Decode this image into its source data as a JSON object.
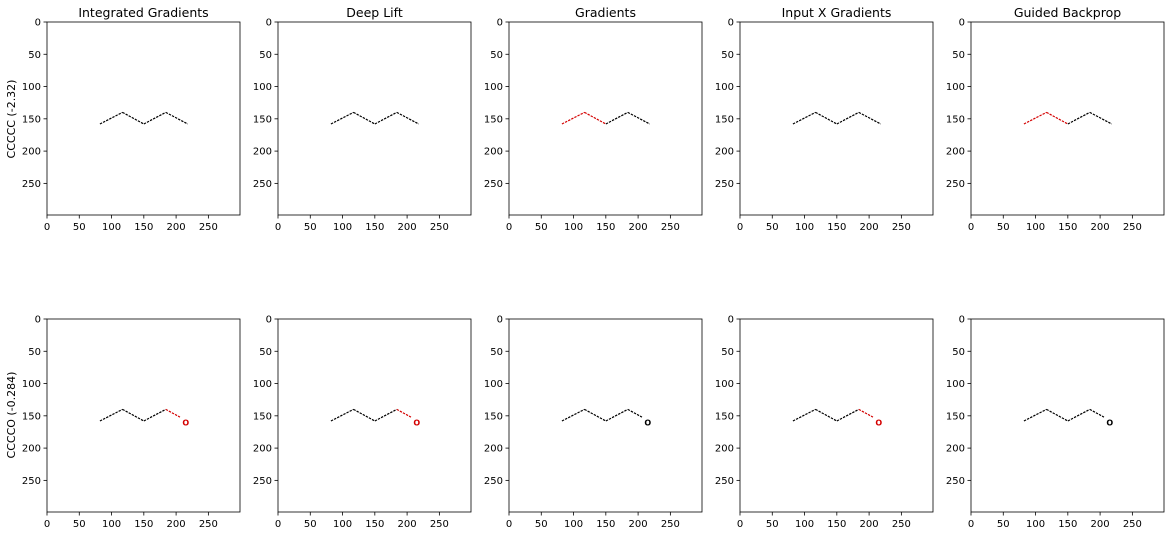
{
  "figure": {
    "row_labels": [
      "CCCCC    (-2.32)",
      "CCCCO    (-0.284)"
    ]
  },
  "chart_data": [
    {
      "type": "heatmap",
      "title": "Integrated Gradients",
      "row": 0,
      "xlim": [
        0,
        299
      ],
      "ylim": [
        299,
        0
      ],
      "xticks": [
        "0",
        "50",
        "100",
        "150",
        "200",
        "250"
      ],
      "yticks": [
        "0",
        "50",
        "100",
        "150",
        "200",
        "250"
      ],
      "segments": [
        {
          "from": [
            82,
            158
          ],
          "to": [
            117,
            140
          ],
          "color": "#000000"
        },
        {
          "from": [
            117,
            140
          ],
          "to": [
            150,
            158
          ],
          "color": "#000000"
        },
        {
          "from": [
            150,
            158
          ],
          "to": [
            184,
            140
          ],
          "color": "#000000"
        },
        {
          "from": [
            184,
            140
          ],
          "to": [
            218,
            158
          ],
          "color": "#000000"
        }
      ]
    },
    {
      "type": "heatmap",
      "title": "Deep Lift",
      "row": 0,
      "xlim": [
        0,
        299
      ],
      "ylim": [
        299,
        0
      ],
      "xticks": [
        "0",
        "50",
        "100",
        "150",
        "200",
        "250"
      ],
      "yticks": [
        "0",
        "50",
        "100",
        "150",
        "200",
        "250"
      ],
      "segments": [
        {
          "from": [
            82,
            158
          ],
          "to": [
            117,
            140
          ],
          "color": "#000000"
        },
        {
          "from": [
            117,
            140
          ],
          "to": [
            150,
            158
          ],
          "color": "#000000"
        },
        {
          "from": [
            150,
            158
          ],
          "to": [
            184,
            140
          ],
          "color": "#000000"
        },
        {
          "from": [
            184,
            140
          ],
          "to": [
            218,
            158
          ],
          "color": "#000000"
        }
      ]
    },
    {
      "type": "heatmap",
      "title": "Gradients",
      "row": 0,
      "xlim": [
        0,
        299
      ],
      "ylim": [
        299,
        0
      ],
      "xticks": [
        "0",
        "50",
        "100",
        "150",
        "200",
        "250"
      ],
      "yticks": [
        "0",
        "50",
        "100",
        "150",
        "200",
        "250"
      ],
      "segments": [
        {
          "from": [
            82,
            158
          ],
          "to": [
            117,
            140
          ],
          "color": "#d40000"
        },
        {
          "from": [
            117,
            140
          ],
          "to": [
            150,
            158
          ],
          "color": "#d40000"
        },
        {
          "from": [
            150,
            158
          ],
          "to": [
            184,
            140
          ],
          "color": "#000000"
        },
        {
          "from": [
            184,
            140
          ],
          "to": [
            218,
            158
          ],
          "color": "#000000"
        }
      ]
    },
    {
      "type": "heatmap",
      "title": "Input X Gradients",
      "row": 0,
      "xlim": [
        0,
        299
      ],
      "ylim": [
        299,
        0
      ],
      "xticks": [
        "0",
        "50",
        "100",
        "150",
        "200",
        "250"
      ],
      "yticks": [
        "0",
        "50",
        "100",
        "150",
        "200",
        "250"
      ],
      "segments": [
        {
          "from": [
            82,
            158
          ],
          "to": [
            117,
            140
          ],
          "color": "#000000"
        },
        {
          "from": [
            117,
            140
          ],
          "to": [
            150,
            158
          ],
          "color": "#000000"
        },
        {
          "from": [
            150,
            158
          ],
          "to": [
            184,
            140
          ],
          "color": "#000000"
        },
        {
          "from": [
            184,
            140
          ],
          "to": [
            218,
            158
          ],
          "color": "#000000"
        }
      ]
    },
    {
      "type": "heatmap",
      "title": "Guided Backprop",
      "row": 0,
      "xlim": [
        0,
        299
      ],
      "ylim": [
        299,
        0
      ],
      "xticks": [
        "0",
        "50",
        "100",
        "150",
        "200",
        "250"
      ],
      "yticks": [
        "0",
        "50",
        "100",
        "150",
        "200",
        "250"
      ],
      "segments": [
        {
          "from": [
            82,
            158
          ],
          "to": [
            117,
            140
          ],
          "color": "#d40000"
        },
        {
          "from": [
            117,
            140
          ],
          "to": [
            150,
            158
          ],
          "color": "#d40000"
        },
        {
          "from": [
            150,
            158
          ],
          "to": [
            184,
            140
          ],
          "color": "#000000"
        },
        {
          "from": [
            184,
            140
          ],
          "to": [
            218,
            158
          ],
          "color": "#000000"
        }
      ]
    },
    {
      "type": "heatmap",
      "title": "",
      "row": 1,
      "xlim": [
        0,
        299
      ],
      "ylim": [
        299,
        0
      ],
      "xticks": [
        "0",
        "50",
        "100",
        "150",
        "200",
        "250"
      ],
      "yticks": [
        "0",
        "50",
        "100",
        "150",
        "200",
        "250"
      ],
      "segments": [
        {
          "from": [
            82,
            158
          ],
          "to": [
            117,
            140
          ],
          "color": "#000000"
        },
        {
          "from": [
            117,
            140
          ],
          "to": [
            150,
            158
          ],
          "color": "#000000"
        },
        {
          "from": [
            150,
            158
          ],
          "to": [
            184,
            140
          ],
          "color": "#000000"
        },
        {
          "from": [
            184,
            140
          ],
          "to": [
            206,
            152
          ],
          "color": "#d40000"
        }
      ],
      "atom": {
        "label": "O",
        "x": 215,
        "y": 160,
        "color": "#d40000"
      }
    },
    {
      "type": "heatmap",
      "title": "",
      "row": 1,
      "xlim": [
        0,
        299
      ],
      "ylim": [
        299,
        0
      ],
      "xticks": [
        "0",
        "50",
        "100",
        "150",
        "200",
        "250"
      ],
      "yticks": [
        "0",
        "50",
        "100",
        "150",
        "200",
        "250"
      ],
      "segments": [
        {
          "from": [
            82,
            158
          ],
          "to": [
            117,
            140
          ],
          "color": "#000000"
        },
        {
          "from": [
            117,
            140
          ],
          "to": [
            150,
            158
          ],
          "color": "#000000"
        },
        {
          "from": [
            150,
            158
          ],
          "to": [
            184,
            140
          ],
          "color": "#000000"
        },
        {
          "from": [
            184,
            140
          ],
          "to": [
            206,
            152
          ],
          "color": "#d40000"
        }
      ],
      "atom": {
        "label": "O",
        "x": 215,
        "y": 160,
        "color": "#d40000"
      }
    },
    {
      "type": "heatmap",
      "title": "",
      "row": 1,
      "xlim": [
        0,
        299
      ],
      "ylim": [
        299,
        0
      ],
      "xticks": [
        "0",
        "50",
        "100",
        "150",
        "200",
        "250"
      ],
      "yticks": [
        "0",
        "50",
        "100",
        "150",
        "200",
        "250"
      ],
      "segments": [
        {
          "from": [
            82,
            158
          ],
          "to": [
            117,
            140
          ],
          "color": "#000000"
        },
        {
          "from": [
            117,
            140
          ],
          "to": [
            150,
            158
          ],
          "color": "#000000"
        },
        {
          "from": [
            150,
            158
          ],
          "to": [
            184,
            140
          ],
          "color": "#000000"
        },
        {
          "from": [
            184,
            140
          ],
          "to": [
            206,
            152
          ],
          "color": "#000000"
        }
      ],
      "atom": {
        "label": "O",
        "x": 215,
        "y": 160,
        "color": "#000000"
      }
    },
    {
      "type": "heatmap",
      "title": "",
      "row": 1,
      "xlim": [
        0,
        299
      ],
      "ylim": [
        299,
        0
      ],
      "xticks": [
        "0",
        "50",
        "100",
        "150",
        "200",
        "250"
      ],
      "yticks": [
        "0",
        "50",
        "100",
        "150",
        "200",
        "250"
      ],
      "segments": [
        {
          "from": [
            82,
            158
          ],
          "to": [
            117,
            140
          ],
          "color": "#000000"
        },
        {
          "from": [
            117,
            140
          ],
          "to": [
            150,
            158
          ],
          "color": "#000000"
        },
        {
          "from": [
            150,
            158
          ],
          "to": [
            184,
            140
          ],
          "color": "#000000"
        },
        {
          "from": [
            184,
            140
          ],
          "to": [
            206,
            152
          ],
          "color": "#d40000"
        }
      ],
      "atom": {
        "label": "O",
        "x": 215,
        "y": 160,
        "color": "#d40000"
      }
    },
    {
      "type": "heatmap",
      "title": "",
      "row": 1,
      "xlim": [
        0,
        299
      ],
      "ylim": [
        299,
        0
      ],
      "xticks": [
        "0",
        "50",
        "100",
        "150",
        "200",
        "250"
      ],
      "yticks": [
        "0",
        "50",
        "100",
        "150",
        "200",
        "250"
      ],
      "segments": [
        {
          "from": [
            82,
            158
          ],
          "to": [
            117,
            140
          ],
          "color": "#000000"
        },
        {
          "from": [
            117,
            140
          ],
          "to": [
            150,
            158
          ],
          "color": "#000000"
        },
        {
          "from": [
            150,
            158
          ],
          "to": [
            184,
            140
          ],
          "color": "#000000"
        },
        {
          "from": [
            184,
            140
          ],
          "to": [
            206,
            152
          ],
          "color": "#000000"
        }
      ],
      "atom": {
        "label": "O",
        "x": 215,
        "y": 160,
        "color": "#000000"
      }
    }
  ]
}
